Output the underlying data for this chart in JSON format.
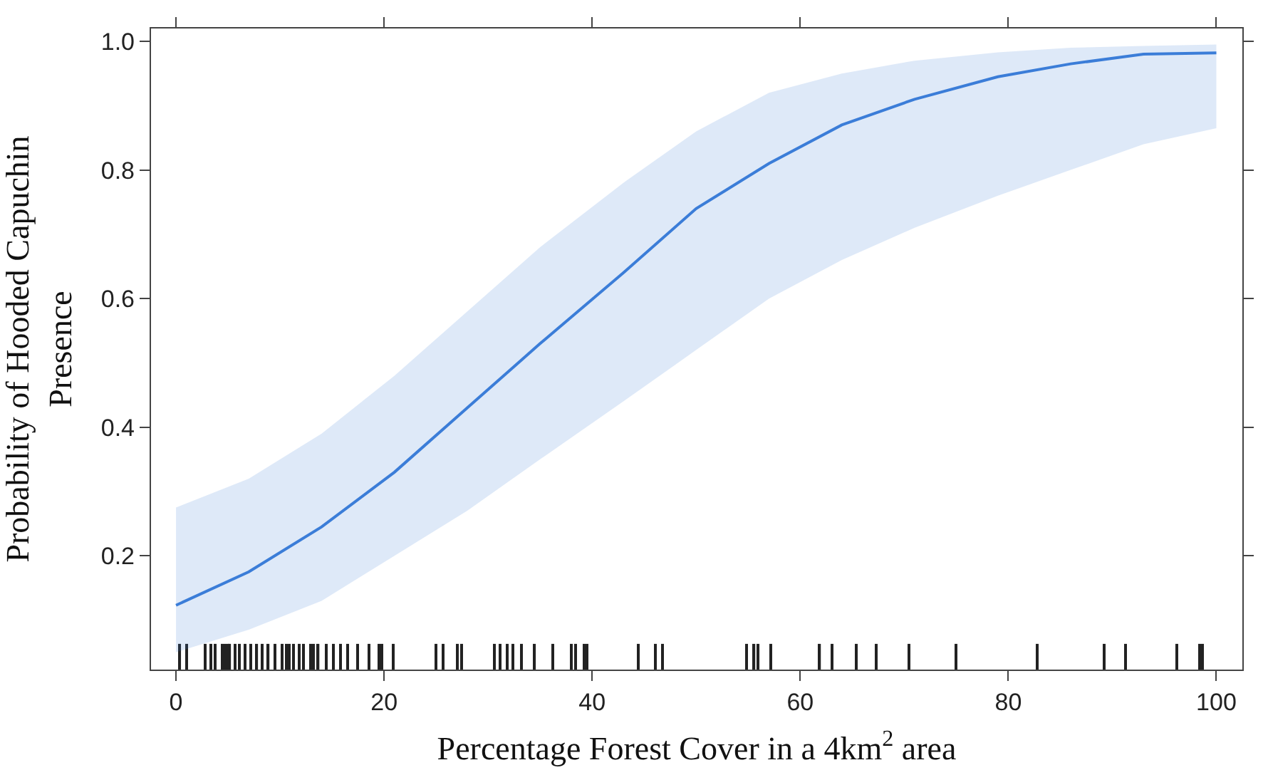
{
  "chart_data": {
    "type": "line",
    "xlabel": "Percentage Forest Cover in a 4km$^{2}$ area",
    "ylabel": "Probability of Hooded Capuchin\nPresence",
    "x": [
      0,
      7,
      14,
      21,
      28,
      35,
      43,
      50,
      57,
      64,
      71,
      79,
      86,
      93,
      100
    ],
    "series": [
      {
        "color": "#3b7dd8",
        "marker": "none",
        "line_style": "solid",
        "values": [
          0.123,
          0.175,
          0.245,
          0.33,
          0.43,
          0.53,
          0.64,
          0.74,
          0.81,
          0.87,
          0.91,
          0.945,
          0.965,
          0.98,
          0.982
        ],
        "lower": [
          0.05,
          0.085,
          0.13,
          0.2,
          0.27,
          0.35,
          0.44,
          0.52,
          0.6,
          0.66,
          0.71,
          0.76,
          0.8,
          0.84,
          0.865
        ],
        "upper": [
          0.275,
          0.32,
          0.39,
          0.48,
          0.58,
          0.68,
          0.78,
          0.86,
          0.92,
          0.95,
          0.97,
          0.983,
          0.99,
          0.993,
          0.995
        ]
      },
      {
        "type": "bar",
        "color": "#222222",
        "base": [
          0.023,
          0.023,
          0.023,
          0.023,
          0.023,
          0.023,
          0.023,
          0.023,
          0.023,
          0.023,
          0.023,
          0.023,
          0.023,
          0.023,
          0.023,
          0.023,
          0.023,
          0.023,
          0.023,
          0.023,
          0.023,
          0.023,
          0.023,
          0.023,
          0.023,
          0.023,
          0.023,
          0.023,
          0.023,
          0.023,
          0.023,
          0.023,
          0.023,
          0.023,
          0.023,
          0.023,
          0.023,
          0.023,
          0.023,
          0.023,
          0.023,
          0.023,
          0.023,
          0.023,
          0.023,
          0.023,
          0.023,
          0.023,
          0.023,
          0.023,
          0.023,
          0.023,
          0.023,
          0.023,
          0.023,
          0.023,
          0.023,
          0.023,
          0.023,
          0.023,
          0.023,
          0.023,
          0.023,
          0.023,
          0.023,
          0.023,
          0.023,
          0.023,
          0.023
        ],
        "x": [
          0.4,
          1.0,
          2.8,
          3.3,
          3.8,
          4.5,
          4.7,
          5.0,
          5.2,
          5.7,
          6.1,
          6.6,
          7.2,
          7.8,
          8.3,
          8.9,
          9.5,
          10.2,
          10.6,
          10.9,
          11.3,
          11.8,
          12.3,
          13.0,
          13.2,
          13.7,
          14.4,
          15.1,
          15.8,
          16.5,
          17.5,
          18.5,
          19.5,
          19.8,
          20.9,
          25.0,
          25.7,
          27.0,
          27.5,
          30.6,
          31.2,
          31.8,
          32.4,
          33.2,
          34.5,
          36.2,
          38.0,
          38.4,
          39.2,
          39.5,
          44.4,
          46.1,
          46.8,
          54.8,
          55.6,
          56.0,
          57.2,
          61.9,
          63.1,
          65.4,
          67.3,
          70.5,
          75.0,
          82.8,
          89.2,
          91.3,
          96.2,
          98.4,
          98.7
        ],
        "values": [
          0.04,
          0.04,
          0.04,
          0.04,
          0.04,
          0.04,
          0.04,
          0.04,
          0.04,
          0.04,
          0.04,
          0.04,
          0.04,
          0.04,
          0.04,
          0.04,
          0.04,
          0.04,
          0.04,
          0.04,
          0.04,
          0.04,
          0.04,
          0.04,
          0.04,
          0.04,
          0.04,
          0.04,
          0.04,
          0.04,
          0.04,
          0.04,
          0.04,
          0.04,
          0.04,
          0.04,
          0.04,
          0.04,
          0.04,
          0.04,
          0.04,
          0.04,
          0.04,
          0.04,
          0.04,
          0.04,
          0.04,
          0.04,
          0.04,
          0.04,
          0.04,
          0.04,
          0.04,
          0.04,
          0.04,
          0.04,
          0.04,
          0.04,
          0.04,
          0.04,
          0.04,
          0.04,
          0.04,
          0.04,
          0.04,
          0.04,
          0.04,
          0.04,
          0.04
        ]
      }
    ],
    "xlim": [
      -2.4,
      102.5
    ],
    "xticks": [
      0,
      20,
      40,
      60,
      80,
      100
    ],
    "ylim": [
      0.023,
      1.02
    ],
    "yticks": [
      0.2,
      0.4,
      0.6,
      0.8,
      {
        "value": 1.0,
        "label": "1.0"
      }
    ]
  }
}
